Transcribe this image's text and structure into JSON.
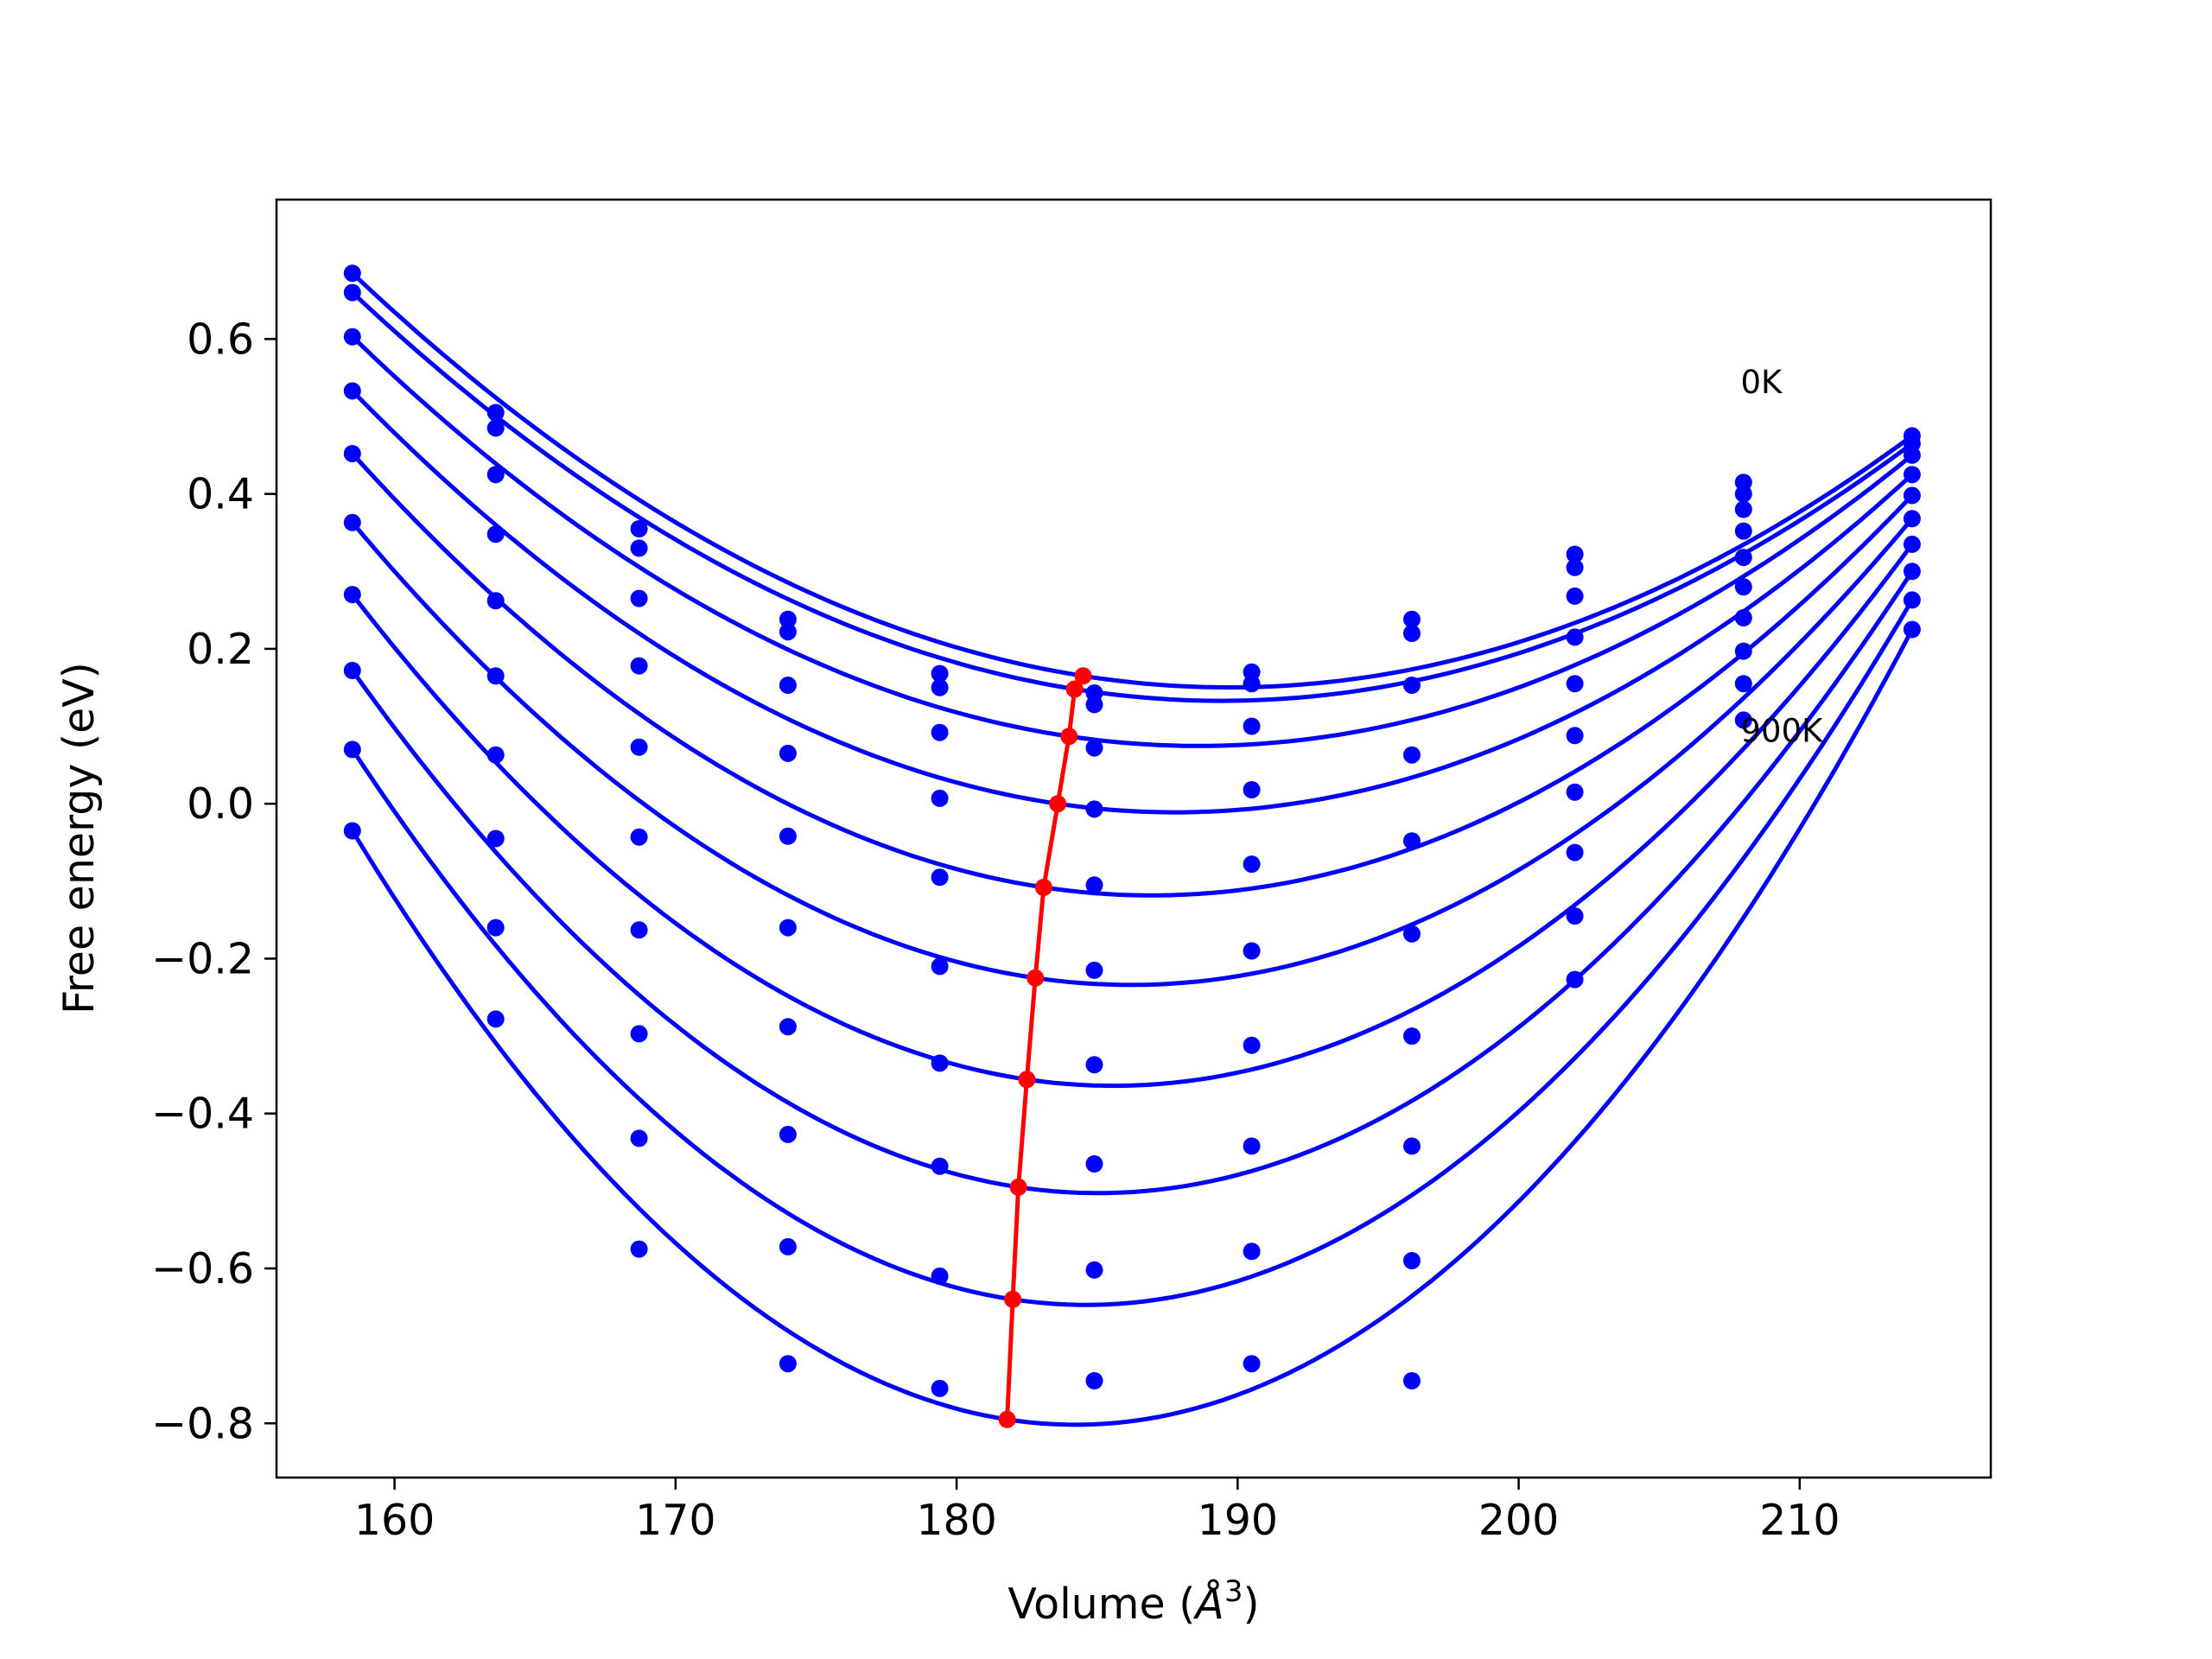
{
  "chart_data": {
    "type": "line",
    "xlabel": "Volume",
    "xlabel_unit": "Å",
    "xlabel_exponent": "3",
    "ylabel": "Free energy (eV)",
    "xlim": [
      155.8,
      216.8
    ],
    "ylim": [
      -0.87,
      0.78
    ],
    "xticks": [
      160,
      170,
      180,
      190,
      200,
      210
    ],
    "yticks": [
      -0.8,
      -0.6,
      -0.4,
      -0.2,
      0.0,
      0.2,
      0.4,
      0.6
    ],
    "ytick_labels": [
      "−0.8",
      "−0.6",
      "−0.4",
      "−0.2",
      "0.0",
      "0.2",
      "0.4",
      "0.6"
    ],
    "grid": false,
    "legend": "none",
    "colors": {
      "fit": "#0000ff",
      "points": "#0000ff",
      "minimum": "#ff0000"
    },
    "annotations": [
      {
        "text": "0K",
        "x": 207.9,
        "y": 0.53
      },
      {
        "text": "900K",
        "x": 207.9,
        "y": 0.08
      }
    ],
    "volumes": [
      158.5,
      163.6,
      168.7,
      174.0,
      179.4,
      184.9,
      190.5,
      196.2,
      202.0,
      208.0,
      214.0
    ],
    "series": [
      {
        "values": [
          0.685,
          0.505,
          0.355,
          0.238,
          0.168,
          0.143,
          0.17,
          0.238,
          0.322,
          0.415,
          0.475
        ],
        "min_x": 184.5,
        "min_y": 0.165
      },
      {
        "values": [
          0.66,
          0.485,
          0.33,
          0.222,
          0.15,
          0.128,
          0.155,
          0.22,
          0.305,
          0.4,
          0.465
        ],
        "min_x": 184.2,
        "min_y": 0.148
      },
      {
        "values": [
          0.603,
          0.425,
          0.265,
          0.153,
          0.092,
          0.072,
          0.1,
          0.153,
          0.268,
          0.38,
          0.45
        ],
        "min_x": 184.0,
        "min_y": 0.087
      },
      {
        "values": [
          0.533,
          0.348,
          0.178,
          0.065,
          0.007,
          -0.007,
          0.018,
          0.063,
          0.215,
          0.352,
          0.425
        ],
        "min_x": 183.6,
        "min_y": 0.0
      },
      {
        "values": [
          0.452,
          0.262,
          0.073,
          -0.042,
          -0.095,
          -0.105,
          -0.078,
          -0.048,
          0.155,
          0.318,
          0.398
        ],
        "min_x": 183.1,
        "min_y": -0.108
      },
      {
        "values": [
          0.363,
          0.165,
          -0.043,
          -0.16,
          -0.21,
          -0.215,
          -0.19,
          -0.168,
          0.088,
          0.28,
          0.368
        ],
        "min_x": 182.8,
        "min_y": -0.225
      },
      {
        "values": [
          0.27,
          0.063,
          -0.163,
          -0.288,
          -0.335,
          -0.337,
          -0.312,
          -0.3,
          0.015,
          0.24,
          0.335
        ],
        "min_x": 182.5,
        "min_y": -0.356
      },
      {
        "values": [
          0.172,
          -0.045,
          -0.297,
          -0.427,
          -0.468,
          -0.465,
          -0.442,
          -0.442,
          -0.063,
          0.197,
          0.3
        ],
        "min_x": 182.2,
        "min_y": -0.495
      },
      {
        "values": [
          0.07,
          -0.16,
          -0.432,
          -0.572,
          -0.61,
          -0.602,
          -0.578,
          -0.59,
          -0.145,
          0.155,
          0.263
        ],
        "min_x": 182.0,
        "min_y": -0.64
      },
      {
        "values": [
          -0.035,
          -0.278,
          -0.575,
          -0.723,
          -0.755,
          -0.745,
          -0.723,
          -0.745,
          -0.227,
          0.108,
          0.225
        ],
        "min_x": 181.8,
        "min_y": -0.795
      }
    ]
  }
}
